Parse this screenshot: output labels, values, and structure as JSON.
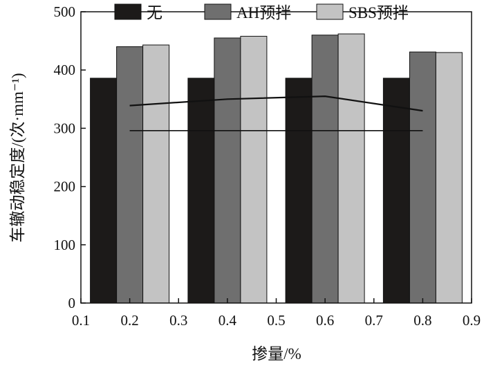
{
  "chart_data": {
    "type": "bar",
    "xlabel": "掺量/%",
    "ylabel": "车辙动稳定度/(次·mm⁻¹)",
    "xlim": [
      0.1,
      0.9
    ],
    "ylim": [
      0,
      500
    ],
    "x_ticks": [
      "0.1",
      "0.2",
      "0.3",
      "0.4",
      "0.5",
      "0.6",
      "0.7",
      "0.8",
      "0.9"
    ],
    "y_ticks": [
      "0",
      "100",
      "200",
      "300",
      "400",
      "500"
    ],
    "categories": [
      "0.2",
      "0.4",
      "0.6",
      "0.8"
    ],
    "legend_position": "top",
    "series": [
      {
        "name": "无",
        "color": "#1c1a19",
        "values": [
          386,
          386,
          386,
          386
        ]
      },
      {
        "name": "AH预拌",
        "color": "#6f6f6f",
        "values": [
          440,
          455,
          460,
          431
        ]
      },
      {
        "name": "SBS预拌",
        "color": "#c3c3c3",
        "values": [
          443,
          458,
          462,
          430
        ]
      }
    ],
    "lines": [
      {
        "x": [
          0.2,
          0.4,
          0.6,
          0.8
        ],
        "y": [
          339,
          350,
          355,
          330
        ]
      },
      {
        "x": [
          0.2,
          0.8
        ],
        "y": [
          296,
          296
        ]
      }
    ]
  }
}
